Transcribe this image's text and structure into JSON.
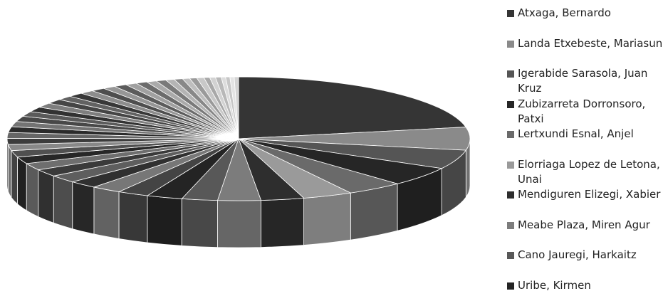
{
  "chart_data": {
    "type": "pie",
    "style": "3d",
    "categories": [
      "Atxaga, Bernardo",
      "Landa Etxebeste, Mariasun",
      "Igerabide Sarasola, Juan Kruz",
      "Zubizarreta Dorronsoro, Patxi",
      "Lertxundi Esnal, Anjel",
      "Elorriaga Lopez de Letona, Unai",
      "Mendiguren Elizegi, Xabier",
      "Meabe Plaza, Miren Agur",
      "Cano Jauregi, Harkaitz",
      "Uribe, Kirmen",
      null,
      null,
      null,
      null,
      null,
      null,
      null,
      null,
      null,
      null,
      null,
      null,
      null,
      null,
      null,
      null,
      null,
      null,
      null,
      null,
      null,
      null,
      null,
      null,
      null,
      null,
      null,
      null,
      null,
      null,
      null,
      null,
      null,
      null,
      null,
      null,
      null,
      null,
      null,
      null
    ],
    "values": [
      22,
      6,
      5,
      5,
      4,
      3.5,
      3,
      3,
      2.5,
      2.5,
      2.2,
      2.1,
      2,
      2,
      1.9,
      1.8,
      1.8,
      1.7,
      1.6,
      1.6,
      1.5,
      1.5,
      1.4,
      1.4,
      1.3,
      1.3,
      1.2,
      1.2,
      1.1,
      1.1,
      1,
      1,
      0.9,
      0.9,
      0.8,
      0.8,
      0.7,
      0.7,
      0.6,
      0.6,
      0.5,
      0.5,
      0.5,
      0.4,
      0.4,
      0.4,
      0.3,
      0.3,
      0.3,
      0.3
    ],
    "colors": [
      "#353535",
      "#8a8a8a",
      "#555555",
      "#262626",
      "#6a6a6a",
      "#9a9a9a",
      "#2e2e2e",
      "#7c7c7c",
      "#585858",
      "#242424",
      "#444444",
      "#777777",
      "#303030",
      "#5e5e5e",
      "#3a3a3a",
      "#6e6e6e",
      "#272727",
      "#505050",
      "#888888",
      "#3c3c3c",
      "#666666",
      "#2b2b2b",
      "#737373",
      "#484848",
      "#5a5a5a",
      "#323232",
      "#7e7e7e",
      "#454545",
      "#626262",
      "#383838",
      "#8c8c8c",
      "#4e4e4e",
      "#969696",
      "#5c5c5c",
      "#a0a0a0",
      "#6c6c6c",
      "#aaaaaa",
      "#7a7a7a",
      "#b4b4b4",
      "#888888",
      "#bebebe",
      "#9a9a9a",
      "#c8c8c8",
      "#a8a8a8",
      "#d2d2d2",
      "#b8b8b8",
      "#dcdcdc",
      "#c6c6c6",
      "#e4e4e4",
      "#d4d4d4"
    ],
    "legend": "right"
  }
}
